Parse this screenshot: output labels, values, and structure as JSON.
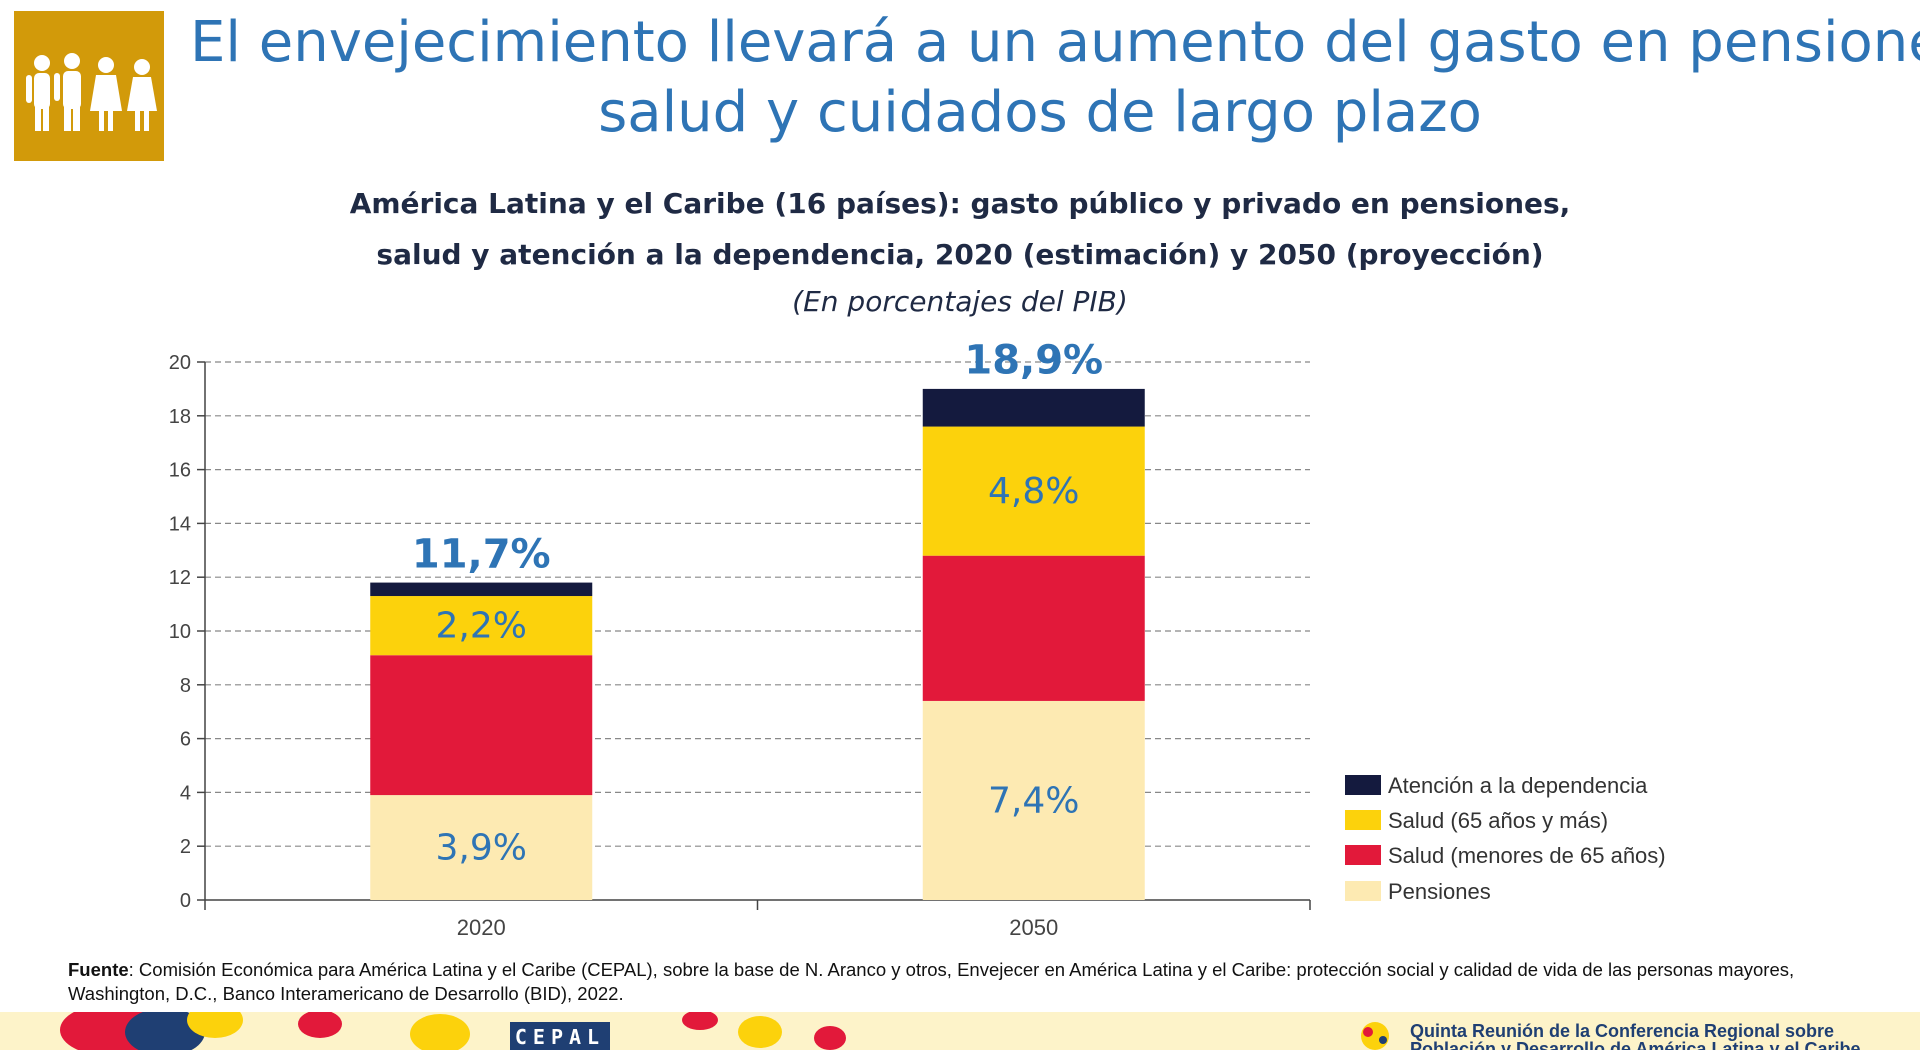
{
  "header": {
    "title_line1": "El envejecimiento llevará a un aumento del gasto en pensiones,",
    "title_line2": "salud y cuidados de largo plazo",
    "logo_icon": "people-family-icon"
  },
  "chart_data": {
    "type": "bar",
    "stacked": true,
    "title_line1": "América Latina y el Caribe (16 países): gasto público y privado en pensiones,",
    "title_line2": "salud y atención a la dependencia, 2020 (estimación)  y 2050 (proyección)",
    "subtitle": "(En porcentajes del PIB)",
    "categories": [
      "2020",
      "2050"
    ],
    "ylim": [
      0,
      20
    ],
    "yticks": [
      "0",
      "2",
      "4",
      "6",
      "8",
      "10",
      "12",
      "14",
      "16",
      "18",
      "20"
    ],
    "grid": true,
    "legend_position": "right",
    "series": [
      {
        "name": "Pensiones",
        "color": "#fdeab2",
        "values": [
          3.9,
          7.4
        ],
        "labels": [
          "3,9%",
          "7,4%"
        ]
      },
      {
        "name": "Salud (menores de 65 años)",
        "color": "#e2193a",
        "values": [
          5.2,
          5.4
        ],
        "labels": [
          "",
          ""
        ]
      },
      {
        "name": "Salud (65 años y más)",
        "color": "#fcd20c",
        "values": [
          2.2,
          4.8
        ],
        "labels": [
          "2,2%",
          "4,8%"
        ]
      },
      {
        "name": "Atención a la dependencia",
        "color": "#141a3e",
        "values": [
          0.5,
          1.4
        ],
        "labels": [
          "",
          ""
        ]
      }
    ],
    "totals": [
      "11,7%",
      "18,9%"
    ],
    "total_values": [
      11.7,
      18.9
    ]
  },
  "source": {
    "label": "Fuente",
    "text": ": Comisión Económica para América Latina y el Caribe (CEPAL), sobre la base de N. Aranco y otros, Envejecer en América Latina y el Caribe: protección social y calidad de vida de las personas mayores, Washington, D.C., Banco Interamericano de Desarrollo (BID), 2022."
  },
  "footer": {
    "cepal_logo_text": "CEPAL",
    "conference_line1": "Quinta Reunión de la Conferencia Regional sobre",
    "conference_line2": "Población y Desarrollo de América Latina y el Caribe"
  }
}
